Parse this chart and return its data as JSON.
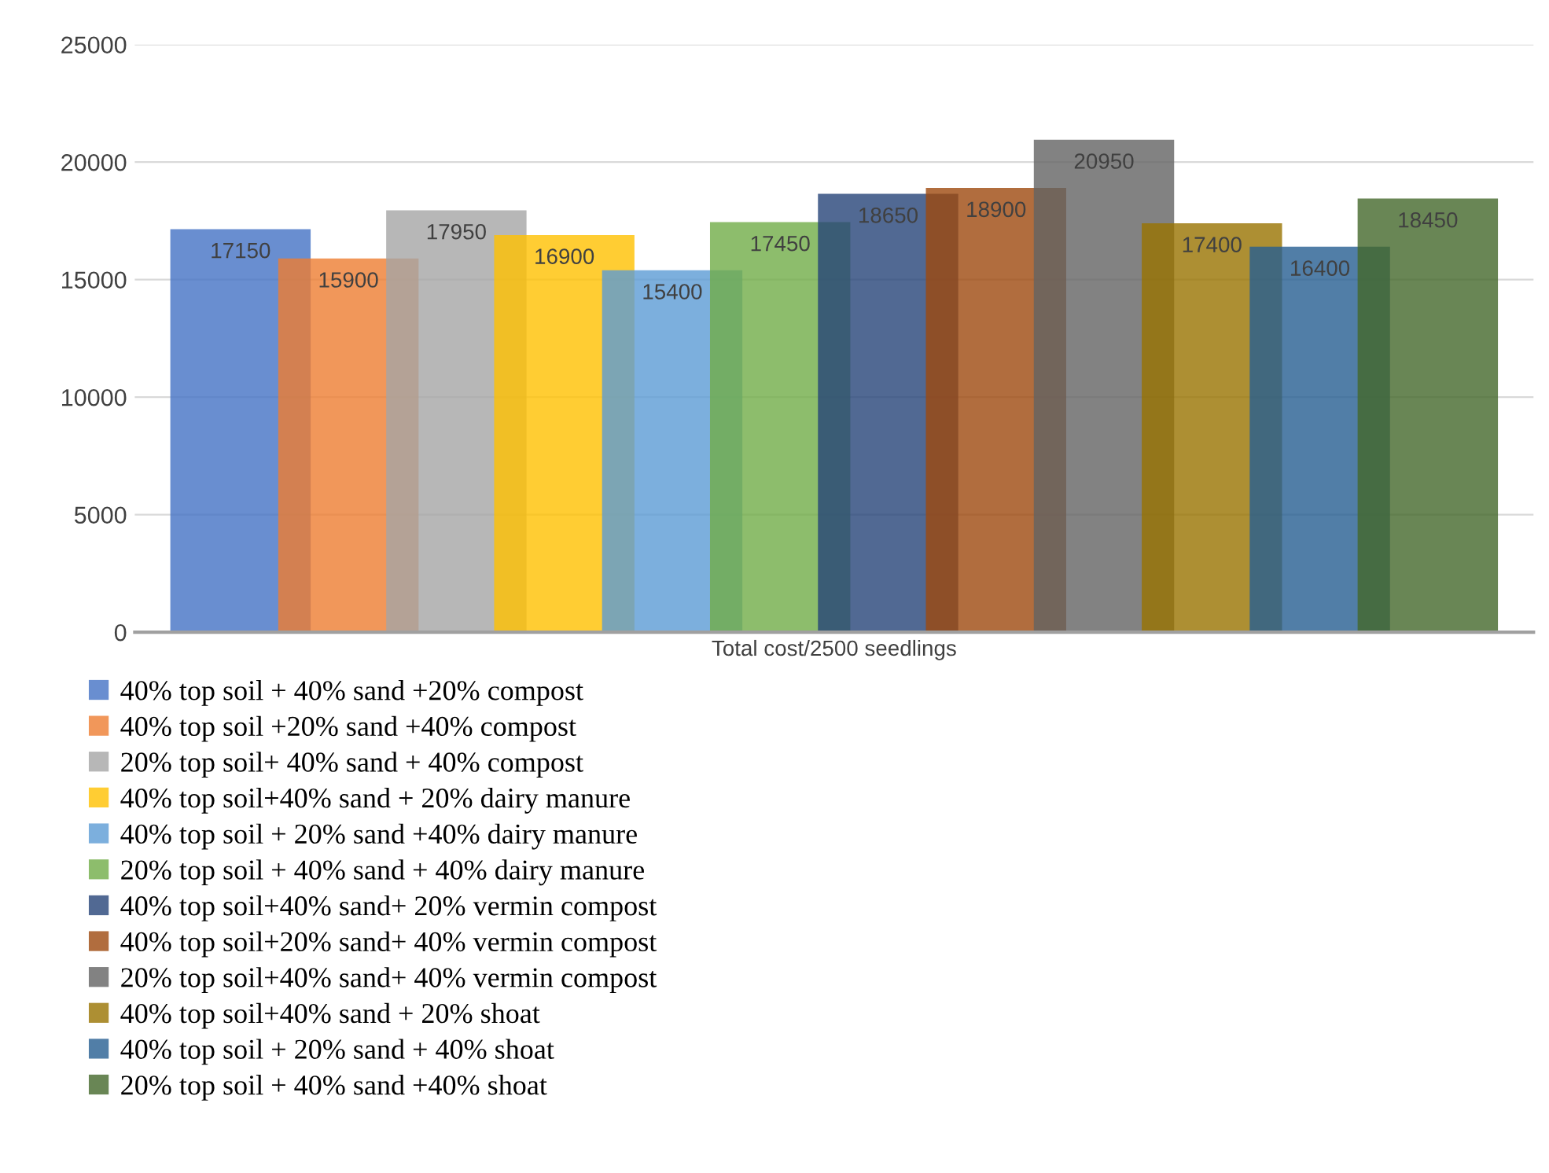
{
  "chart_data": {
    "type": "bar",
    "categories": [
      "Total cost/2500 seedlings"
    ],
    "series": [
      {
        "name": "40% top soil + 40% sand +20% compost",
        "color": "#4472c4",
        "values": [
          17150
        ]
      },
      {
        "name": "40% top soil +20% sand +40% compost",
        "color": "#ed7d31",
        "values": [
          15900
        ]
      },
      {
        "name": "20% top soil+ 40% sand + 40% compost",
        "color": "#a5a5a5",
        "values": [
          17950
        ]
      },
      {
        "name": "40% top soil+40% sand + 20% dairy manure",
        "color": "#ffc000",
        "values": [
          16900
        ]
      },
      {
        "name": "40% top soil + 20% sand +40% dairy manure",
        "color": "#5b9bd5",
        "values": [
          15400
        ]
      },
      {
        "name": "20% top soil + 40% sand + 40% dairy manure",
        "color": "#70ad47",
        "values": [
          17450
        ]
      },
      {
        "name": "40% top soil+40% sand+ 20% vermin compost",
        "color": "#264478",
        "values": [
          18650
        ]
      },
      {
        "name": "40% top soil+20% sand+ 40% vermin compost",
        "color": "#9e480e",
        "values": [
          18900
        ]
      },
      {
        "name": "20% top soil+40% sand+ 40% vermin compost",
        "color": "#636363",
        "values": [
          20950
        ]
      },
      {
        "name": "40% top soil+40% sand + 20% shoat",
        "color": "#997300",
        "values": [
          17400
        ]
      },
      {
        "name": "40% top soil + 20% sand + 40% shoat",
        "color": "#255e91",
        "values": [
          16400
        ]
      },
      {
        "name": "20% top soil + 40% sand +40% shoat",
        "color": "#43682b",
        "values": [
          18450
        ]
      }
    ],
    "ylim": [
      0,
      25000
    ],
    "yticks": [
      0,
      5000,
      10000,
      15000,
      20000,
      25000
    ],
    "grid": "y",
    "legend": "bottom",
    "data_labels": true
  }
}
